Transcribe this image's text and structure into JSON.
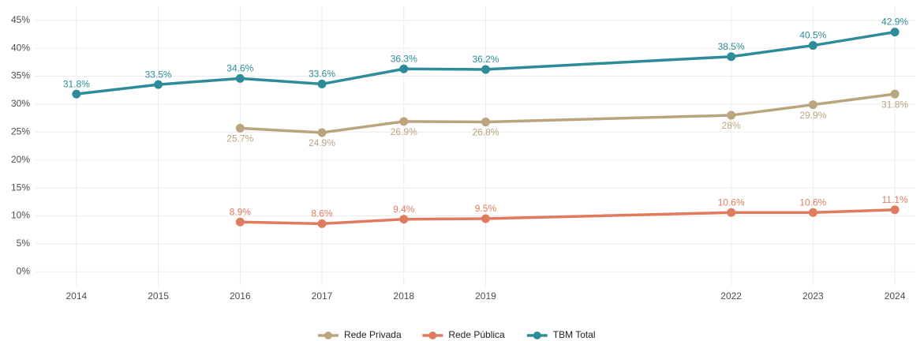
{
  "chart_data": {
    "type": "line",
    "x": [
      2014,
      2015,
      2016,
      2017,
      2018,
      2019,
      2022,
      2023,
      2024
    ],
    "series": [
      {
        "name": "Rede Privada",
        "color": "#b9a57e",
        "values": [
          null,
          null,
          25.7,
          24.9,
          26.9,
          26.8,
          28,
          29.9,
          31.8
        ],
        "value_labels": [
          null,
          null,
          "25.7%",
          "24.9%",
          "26.9%",
          "26.8%",
          "28%",
          "29.9%",
          "31.8%"
        ]
      },
      {
        "name": "Rede Pública",
        "color": "#e07b5f",
        "values": [
          null,
          null,
          8.9,
          8.6,
          9.4,
          9.5,
          10.6,
          10.6,
          11.1
        ],
        "value_labels": [
          null,
          null,
          "8.9%",
          "8.6%",
          "9.4%",
          "9.5%",
          "10.6%",
          "10.6%",
          "11.1%"
        ]
      },
      {
        "name": "TBM Total",
        "color": "#2e8b9a",
        "values": [
          31.8,
          33.5,
          34.6,
          33.6,
          36.3,
          36.2,
          38.5,
          40.5,
          42.9
        ],
        "value_labels": [
          "31.8%",
          "33.5%",
          "34.6%",
          "33.6%",
          "36.3%",
          "36.2%",
          "38.5%",
          "40.5%",
          "42.9%"
        ]
      }
    ],
    "xlim": [
      2013.5,
      2024.25
    ],
    "xticks": [
      2014,
      2015,
      2016,
      2017,
      2018,
      2019,
      2022,
      2023,
      2024
    ],
    "ylim": [
      -2.5,
      47.5
    ],
    "yticks": [
      {
        "value": 0,
        "label": "0%"
      },
      {
        "value": 5,
        "label": "5%"
      },
      {
        "value": 10,
        "label": "10%"
      },
      {
        "value": 15,
        "label": "15%"
      },
      {
        "value": 20,
        "label": "20%"
      },
      {
        "value": 25,
        "label": "25%"
      },
      {
        "value": 30,
        "label": "30%"
      },
      {
        "value": 35,
        "label": "35%"
      },
      {
        "value": 40,
        "label": "40%"
      },
      {
        "value": 45,
        "label": "45%"
      }
    ],
    "grid": true,
    "legend": "bottom"
  }
}
